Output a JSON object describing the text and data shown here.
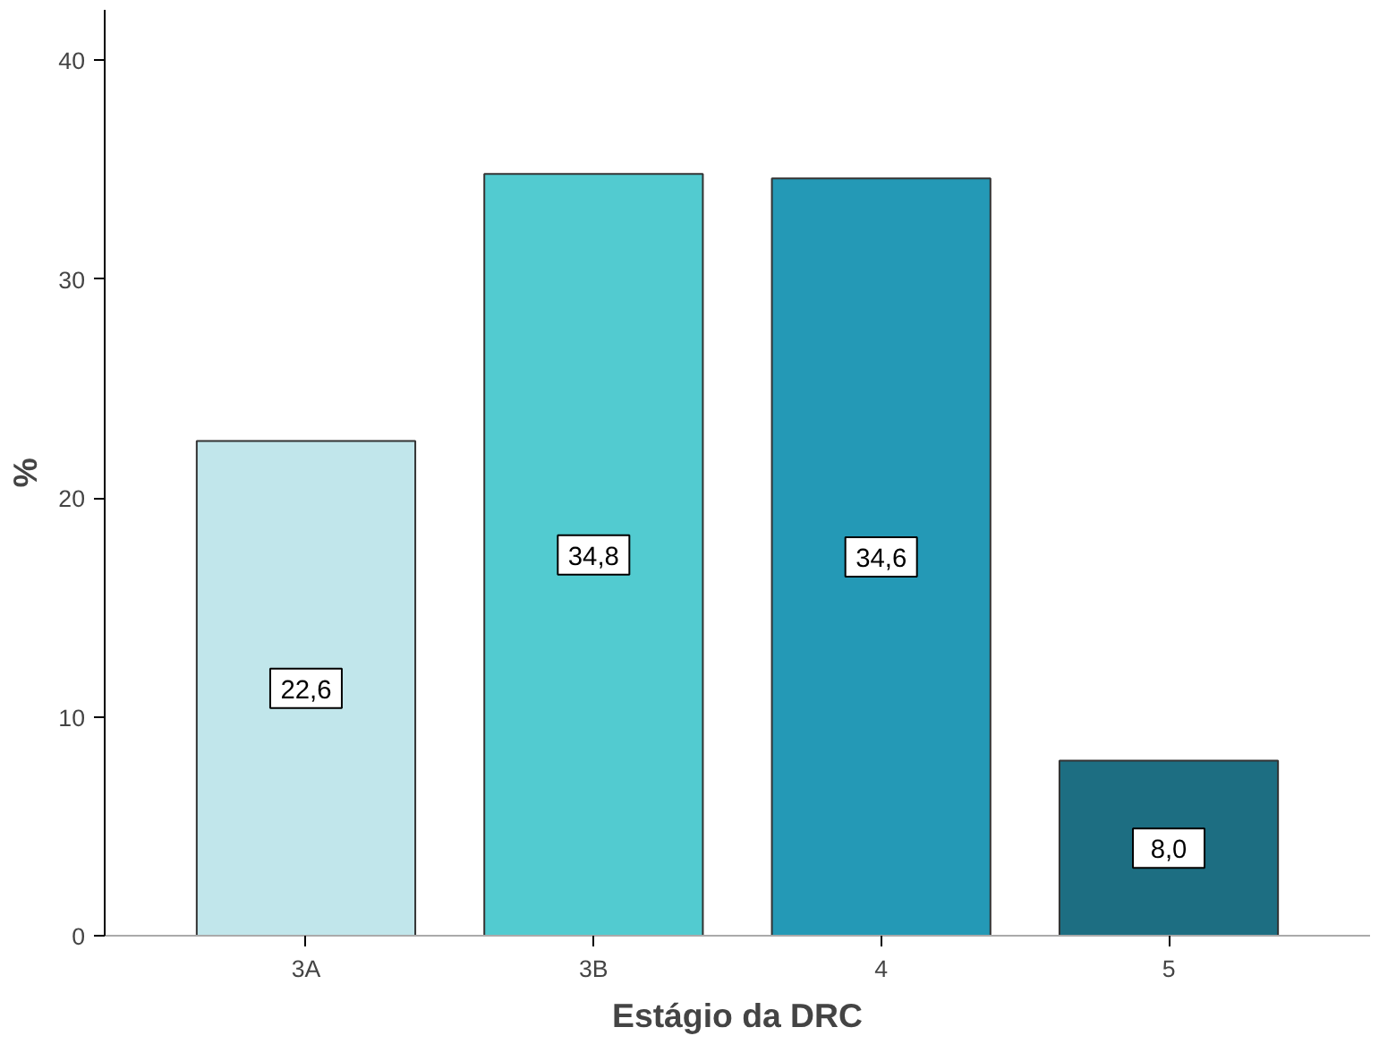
{
  "chart_data": {
    "type": "bar",
    "xlabel": "Estágio da DRC",
    "ylabel": "%",
    "categories": [
      "3A",
      "3B",
      "4",
      "5"
    ],
    "values": [
      22.6,
      34.8,
      34.6,
      8.0
    ],
    "colors": [
      "#c1e6eb",
      "#52cbd0",
      "#2499b6",
      "#1d6e82"
    ],
    "value_labels": [
      "22,6",
      "34,8",
      "34,6",
      "8,0"
    ],
    "ylim": [
      0,
      42.3
    ],
    "yticks": [
      0,
      10,
      20,
      30,
      40
    ],
    "grid": false
  }
}
